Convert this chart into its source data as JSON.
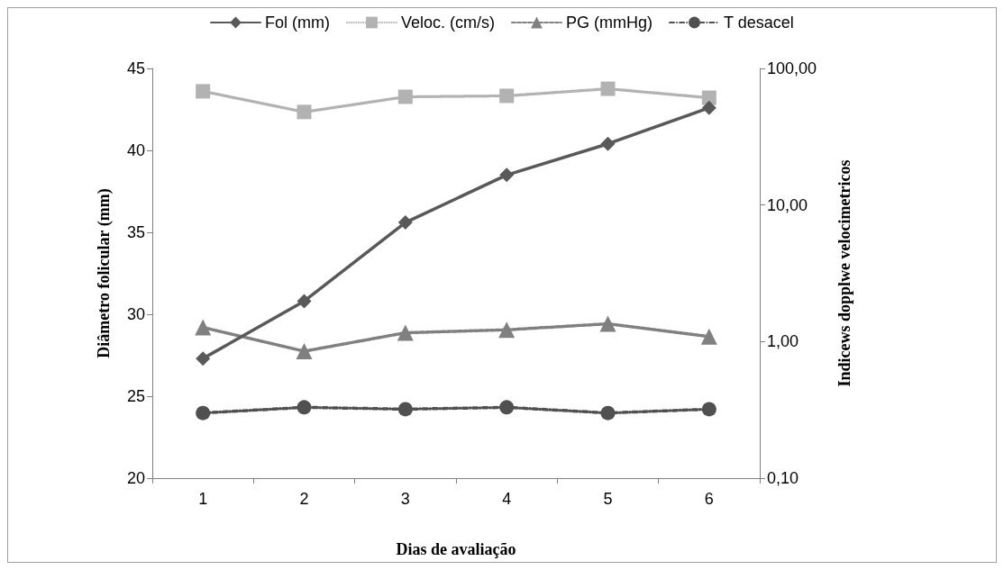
{
  "chart_data": {
    "type": "line",
    "categories": [
      "1",
      "2",
      "3",
      "4",
      "5",
      "6"
    ],
    "xlabel": "Dias de avaliação",
    "ylabel": "Diâmetro folicular (mm)",
    "y2label": "Indicews dopplwe velocimetricos",
    "ylim": [
      20,
      45
    ],
    "yticks": [
      20,
      25,
      30,
      35,
      40,
      45
    ],
    "y2lim": [
      0.1,
      100
    ],
    "y2ticks": [
      {
        "value": 0.1,
        "label": "0,10"
      },
      {
        "value": 1,
        "label": "1,00"
      },
      {
        "value": 10,
        "label": "10,00"
      },
      {
        "value": 100,
        "label": "100,00"
      }
    ],
    "log": "y2",
    "grid": false,
    "legend": "top",
    "series": [
      {
        "name": "Fol (mm)",
        "color": "#595959",
        "marker": "diamond",
        "line_style": "solid",
        "values": [
          27.3,
          30.8,
          35.6,
          38.5,
          40.4,
          42.6
        ]
      },
      {
        "name": "Veloc. (cm/s)",
        "color": "#b2b2b2",
        "marker": "square",
        "line_style": "dotted",
        "axis": "y2",
        "values": [
          68,
          48,
          62,
          63,
          71,
          61
        ]
      },
      {
        "name": "PG (mmHg)",
        "color": "#808080",
        "marker": "triangle",
        "line_style": "dashed",
        "axis": "y2",
        "values": [
          1.27,
          0.85,
          1.16,
          1.22,
          1.35,
          1.09
        ]
      },
      {
        "name": "T desacel",
        "color": "#505050",
        "marker": "circle",
        "line_style": "dashdot",
        "axis": "y2",
        "values": [
          0.3,
          0.33,
          0.32,
          0.33,
          0.3,
          0.32
        ]
      }
    ]
  }
}
